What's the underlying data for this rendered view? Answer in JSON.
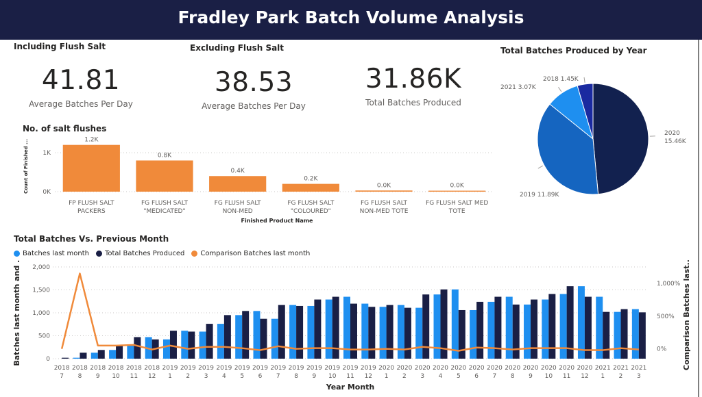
{
  "header": {
    "title": "Fradley Park Batch Volume Analysis"
  },
  "kpis": {
    "including_label": "Including Flush Salt",
    "excluding_label": "Excluding Flush Salt",
    "incl_value": "41.81",
    "incl_caption": "Average Batches Per Day",
    "excl_value": "38.53",
    "excl_caption": "Average Batches Per Day",
    "total_value": "31.86K",
    "total_caption": "Total Batches Produced"
  },
  "colors": {
    "orange": "#f08a3a",
    "navy": "#1a1f45",
    "light_blue": "#1e8ff0",
    "pie_2020": "#12214f",
    "pie_2019": "#1565c0",
    "pie_2021": "#1e8ff0",
    "pie_2018": "#1a2aa0"
  },
  "chart_data": [
    {
      "id": "salt",
      "type": "bar",
      "title": "No. of salt flushes",
      "xlabel": "Finished Product Name",
      "ylabel": "Count of Finished ...",
      "ylim": [
        0,
        1300
      ],
      "yticks": [
        0,
        1000
      ],
      "ytick_labels": [
        "0K",
        "1K"
      ],
      "grid": true,
      "categories": [
        [
          "FP FLUSH SALT",
          "PACKERS"
        ],
        [
          "FG FLUSH SALT",
          "\"MEDICATED\""
        ],
        [
          "FG FLUSH SALT",
          "NON-MED"
        ],
        [
          "FG FLUSH SALT",
          "\"COLOURED\""
        ],
        [
          "FG FLUSH SALT",
          "NON-MED TOTE"
        ],
        [
          "FG FLUSH SALT MED",
          "TOTE"
        ]
      ],
      "values": [
        1200,
        800,
        400,
        200,
        30,
        15
      ],
      "data_labels": [
        "1.2K",
        "0.8K",
        "0.4K",
        "0.2K",
        "0.0K",
        "0.0K"
      ]
    },
    {
      "id": "pie",
      "type": "pie",
      "title": "Total Batches Produced by Year",
      "slices": [
        {
          "name": "2020",
          "value": 15.46,
          "label": "15.46K"
        },
        {
          "name": "2019",
          "value": 11.89,
          "label": "11.89K"
        },
        {
          "name": "2021",
          "value": 3.07,
          "label": "3.07K"
        },
        {
          "name": "2018",
          "value": 1.45,
          "label": "1.45K"
        }
      ]
    },
    {
      "id": "monthly",
      "type": "bar",
      "title": "Total Batches Vs. Previous Month",
      "xlabel": "Year Month",
      "ylabel": "Batches last month and ...",
      "y2label": "Comparison Batches last...",
      "ylim": [
        0,
        2000
      ],
      "yticks": [
        0,
        500,
        1000,
        1500,
        2000
      ],
      "ytick_labels": [
        "0",
        "500",
        "1,000",
        "1,500",
        "2,000"
      ],
      "y2lim": [
        -150,
        1250
      ],
      "y2ticks": [
        0,
        500,
        1000
      ],
      "y2tick_labels": [
        "0%",
        "500%",
        "1,000%"
      ],
      "grid": true,
      "categories": [
        [
          "2018",
          "7"
        ],
        [
          "2018",
          "8"
        ],
        [
          "2018",
          "9"
        ],
        [
          "2018",
          "10"
        ],
        [
          "2018",
          "11"
        ],
        [
          "2018",
          "12"
        ],
        [
          "2019",
          "1"
        ],
        [
          "2019",
          "2"
        ],
        [
          "2019",
          "3"
        ],
        [
          "2019",
          "4"
        ],
        [
          "2019",
          "5"
        ],
        [
          "2019",
          "6"
        ],
        [
          "2019",
          "7"
        ],
        [
          "2019",
          "8"
        ],
        [
          "2019",
          "9"
        ],
        [
          "2019",
          "10"
        ],
        [
          "2019",
          "11"
        ],
        [
          "2019",
          "12"
        ],
        [
          "2020",
          "1"
        ],
        [
          "2020",
          "2"
        ],
        [
          "2020",
          "3"
        ],
        [
          "2020",
          "4"
        ],
        [
          "2020",
          "5"
        ],
        [
          "2020",
          "6"
        ],
        [
          "2020",
          "7"
        ],
        [
          "2020",
          "8"
        ],
        [
          "2020",
          "9"
        ],
        [
          "2020",
          "10"
        ],
        [
          "2020",
          "11"
        ],
        [
          "2020",
          "12"
        ],
        [
          "2021",
          "1"
        ],
        [
          "2021",
          "2"
        ],
        [
          "2021",
          "3"
        ]
      ],
      "series": [
        {
          "name": "Batches last month",
          "values": [
            0,
            20,
            130,
            190,
            290,
            470,
            420,
            610,
            590,
            760,
            950,
            1040,
            870,
            1170,
            1150,
            1290,
            1350,
            1200,
            1130,
            1170,
            1110,
            1400,
            1510,
            1060,
            1240,
            1350,
            1180,
            1290,
            1410,
            1580,
            1350,
            1020,
            1080
          ]
        },
        {
          "name": "Total Batches Produced",
          "values": [
            20,
            130,
            190,
            290,
            470,
            420,
            610,
            590,
            760,
            950,
            1040,
            870,
            1170,
            1150,
            1290,
            1350,
            1200,
            1130,
            1170,
            1110,
            1400,
            1510,
            1060,
            1240,
            1350,
            1180,
            1290,
            1410,
            1580,
            1350,
            1020,
            1080,
            1010
          ]
        },
        {
          "name": "Comparison Batches last month",
          "values": [
            0,
            1150,
            50,
            50,
            60,
            -10,
            50,
            0,
            30,
            30,
            10,
            -20,
            40,
            0,
            10,
            10,
            -10,
            -10,
            0,
            -10,
            30,
            10,
            -30,
            20,
            10,
            -10,
            10,
            10,
            10,
            -20,
            -20,
            10,
            -10
          ]
        }
      ]
    }
  ]
}
